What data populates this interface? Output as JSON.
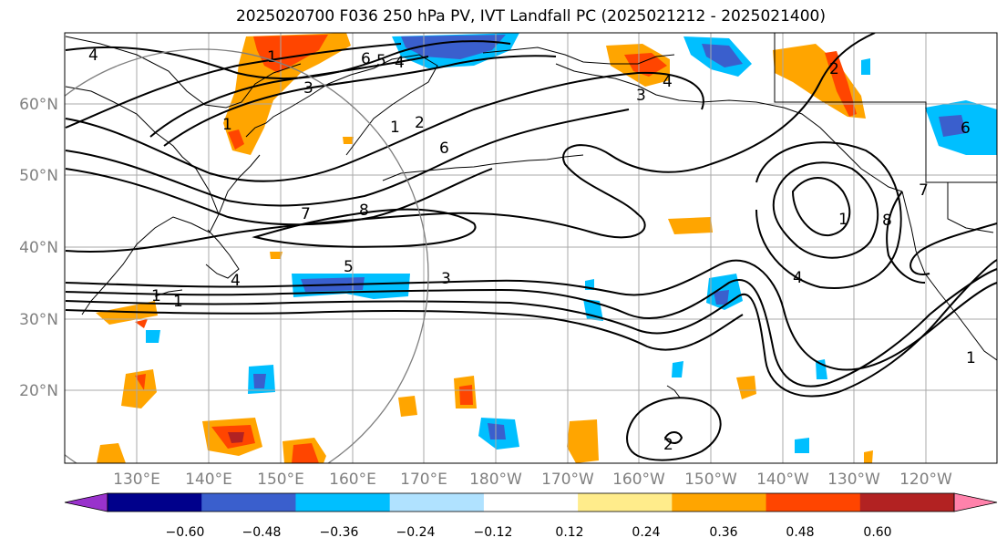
{
  "title": "2025020700 F036 250 hPa PV, IVT Landfall PC (2025021212 - 2025021400)",
  "lat_labels": [
    "60°N",
    "50°N",
    "40°N",
    "30°N",
    "20°N"
  ],
  "lon_labels": [
    "130°E",
    "140°E",
    "150°E",
    "160°E",
    "170°E",
    "180°W",
    "170°W",
    "160°W",
    "150°W",
    "140°W",
    "130°W",
    "120°W"
  ],
  "colorbar": {
    "colors": [
      "#9932CC",
      "#00008B",
      "#3A5FCD",
      "#00BFFF",
      "#B0E2FF",
      "#FFFFFF",
      "#FFEC8B",
      "#FFA500",
      "#FF4500",
      "#B22222",
      "#FF82AB"
    ],
    "tick_labels": [
      "−0.60",
      "−0.48",
      "−0.36",
      "−0.24",
      "−0.12",
      "0.12",
      "0.24",
      "0.36",
      "0.48",
      "0.60"
    ]
  },
  "contour_labels": [
    "4",
    "1",
    "6",
    "5",
    "4",
    "3",
    "1",
    "1",
    "2",
    "6",
    "7",
    "8",
    "5",
    "3",
    "4",
    "1",
    "1",
    "2",
    "1",
    "3",
    "4",
    "6",
    "8",
    "4",
    "1",
    "7",
    "2"
  ]
}
